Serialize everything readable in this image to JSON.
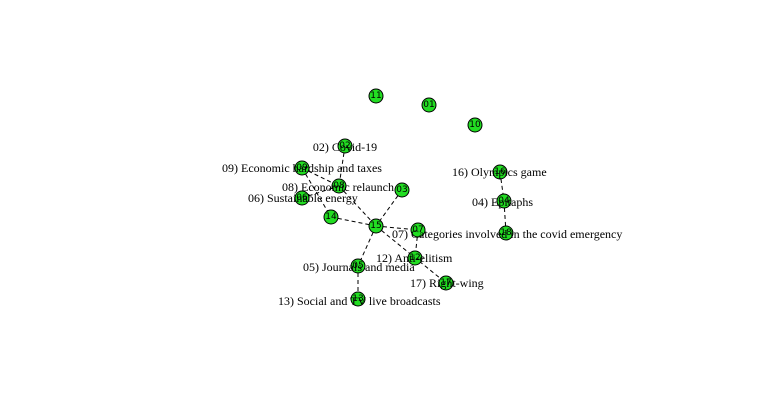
{
  "graph": {
    "nodes": [
      {
        "key": "n11",
        "id": "11",
        "label": ""
      },
      {
        "key": "n01",
        "id": "01",
        "label": ""
      },
      {
        "key": "n10",
        "id": "10",
        "label": ""
      },
      {
        "key": "n02",
        "id": "02",
        "label": "02) Covid-19"
      },
      {
        "key": "n09",
        "id": "09",
        "label": "09) Economic hardship and taxes"
      },
      {
        "key": "n08",
        "id": "08",
        "label": "08) Economic relaunch"
      },
      {
        "key": "n03",
        "id": "03",
        "label": ""
      },
      {
        "key": "n06",
        "id": "06",
        "label": "06) Sustainable energy"
      },
      {
        "key": "n14",
        "id": "14",
        "label": ""
      },
      {
        "key": "n15",
        "id": "15",
        "label": ""
      },
      {
        "key": "n07",
        "id": "07",
        "label": "07) Categories involved in the covid emergency"
      },
      {
        "key": "n12",
        "id": "12",
        "label": "12) Anti-elitism"
      },
      {
        "key": "n05",
        "id": "05",
        "label": "05) Journals and media"
      },
      {
        "key": "n17",
        "id": "17",
        "label": "17) Right-wing"
      },
      {
        "key": "n13",
        "id": "13",
        "label": "13) Social and TV live broadcasts"
      },
      {
        "key": "n16",
        "id": "16",
        "label": "16) Olympics game"
      },
      {
        "key": "n04",
        "id": "04",
        "label": "04) Epitaphs"
      },
      {
        "key": "n18",
        "id": "18",
        "label": ""
      }
    ],
    "edges": [
      [
        "n02",
        "n08"
      ],
      [
        "n09",
        "n08"
      ],
      [
        "n09",
        "n14"
      ],
      [
        "n06",
        "n08"
      ],
      [
        "n08",
        "n15"
      ],
      [
        "n14",
        "n15"
      ],
      [
        "n03",
        "n15"
      ],
      [
        "n15",
        "n07"
      ],
      [
        "n15",
        "n17"
      ],
      [
        "n15",
        "n05"
      ],
      [
        "n07",
        "n12"
      ],
      [
        "n05",
        "n13"
      ],
      [
        "n16",
        "n04"
      ],
      [
        "n04",
        "n18"
      ]
    ]
  }
}
